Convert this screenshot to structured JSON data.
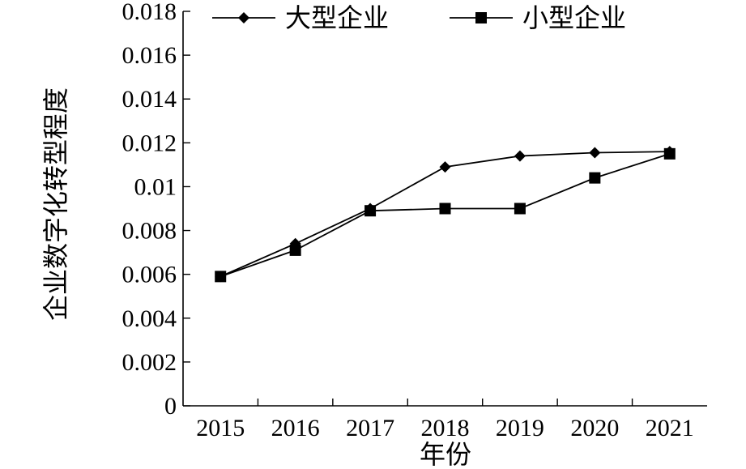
{
  "chart_data": {
    "type": "line",
    "xlabel": "年份",
    "ylabel": "企业数字化转型程度",
    "categories": [
      "2015",
      "2016",
      "2017",
      "2018",
      "2019",
      "2020",
      "2021"
    ],
    "ylim": [
      0,
      0.018
    ],
    "yticks": [
      "0",
      "0.002",
      "0.004",
      "0.006",
      "0.008",
      "0.01",
      "0.012",
      "0.014",
      "0.016",
      "0.018"
    ],
    "grid": false,
    "legend_position": "top",
    "series": [
      {
        "name": "大型企业",
        "marker": "diamond",
        "color": "#000000",
        "values": [
          0.0059,
          0.0074,
          0.009,
          0.0109,
          0.0114,
          0.01155,
          0.0116
        ]
      },
      {
        "name": "小型企业",
        "marker": "square",
        "color": "#000000",
        "values": [
          0.0059,
          0.0071,
          0.0089,
          0.009,
          0.009,
          0.0104,
          0.0115
        ]
      }
    ]
  }
}
